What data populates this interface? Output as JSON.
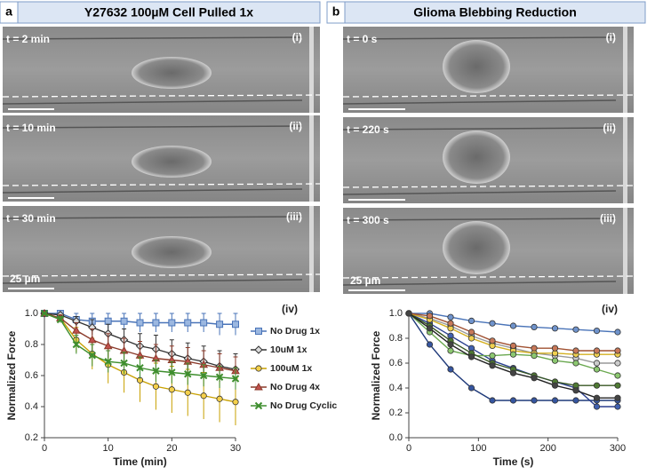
{
  "panels": [
    {
      "letter": "a",
      "title": "Y27632 100µM Cell Pulled 1x",
      "images": [
        {
          "time": "t = 2 min",
          "label": "(i)"
        },
        {
          "time": "t = 10 min",
          "label": "(ii)"
        },
        {
          "time": "t = 30 min",
          "label": "(iii)"
        }
      ],
      "scale_bar": "25 µm"
    },
    {
      "letter": "b",
      "title": "Glioma Blebbing Reduction",
      "images": [
        {
          "time": "t = 0 s",
          "label": "(i)"
        },
        {
          "time": "t = 220 s",
          "label": "(ii)"
        },
        {
          "time": "t = 300 s",
          "label": "(iii)"
        }
      ],
      "scale_bar": "25 µm"
    }
  ],
  "chart_data": [
    {
      "type": "line",
      "panel_label": "(iv)",
      "xlabel": "Time (min)",
      "ylabel": "Normalized Force",
      "x": [
        0,
        2.5,
        5,
        7.5,
        10,
        12.5,
        15,
        17.5,
        20,
        22.5,
        25,
        27.5,
        30
      ],
      "xlim": [
        0,
        30
      ],
      "xticks": [
        0,
        10,
        20,
        30
      ],
      "ylim": [
        0.2,
        1.0
      ],
      "yticks": [
        0.2,
        0.4,
        0.6,
        0.8,
        {
          "value": 1.0,
          "label": "1.0"
        }
      ],
      "legend": "right",
      "series": [
        {
          "name": "No Drug 1x",
          "color": "#4a74b8",
          "fill": "#9bb7e0",
          "marker": "square",
          "values": [
            1,
            1,
            0.96,
            0.95,
            0.95,
            0.95,
            0.94,
            0.94,
            0.94,
            0.94,
            0.94,
            0.93,
            0.93
          ],
          "errors": [
            0,
            0.01,
            0.04,
            0.05,
            0.05,
            0.05,
            0.06,
            0.06,
            0.06,
            0.06,
            0.06,
            0.07,
            0.07
          ]
        },
        {
          "name": "10uM 1x",
          "color": "#333333",
          "fill": "#dddddd",
          "marker": "diamond",
          "values": [
            1,
            0.99,
            0.95,
            0.91,
            0.87,
            0.83,
            0.79,
            0.77,
            0.74,
            0.71,
            0.69,
            0.66,
            0.64
          ],
          "errors": [
            0,
            0.01,
            0.03,
            0.05,
            0.06,
            0.07,
            0.08,
            0.09,
            0.09,
            0.1,
            0.1,
            0.1,
            0.1
          ]
        },
        {
          "name": "100uM 1x",
          "color": "#c8a000",
          "fill": "#f5d04a",
          "marker": "circle",
          "values": [
            1,
            0.97,
            0.83,
            0.74,
            0.67,
            0.62,
            0.57,
            0.53,
            0.51,
            0.49,
            0.47,
            0.45,
            0.43
          ],
          "errors": [
            0,
            0.02,
            0.08,
            0.1,
            0.12,
            0.13,
            0.14,
            0.15,
            0.15,
            0.15,
            0.15,
            0.15,
            0.15
          ]
        },
        {
          "name": "No Drug 4x",
          "color": "#8b3a2a",
          "fill": "#c0504d",
          "marker": "triangle",
          "values": [
            1,
            0.97,
            0.89,
            0.83,
            0.79,
            0.76,
            0.73,
            0.71,
            0.7,
            0.69,
            0.67,
            0.65,
            0.63
          ],
          "errors": [
            0,
            0.02,
            0.05,
            0.07,
            0.08,
            0.08,
            0.09,
            0.09,
            0.09,
            0.09,
            0.09,
            0.09,
            0.09
          ]
        },
        {
          "name": "No Drug Cyclic",
          "color": "#3e8e2e",
          "fill": "#3e8e2e",
          "marker": "x",
          "values": [
            1,
            0.96,
            0.8,
            0.73,
            0.69,
            0.68,
            0.65,
            0.63,
            0.62,
            0.61,
            0.6,
            0.59,
            0.58
          ],
          "errors": [
            0,
            0.02,
            0.06,
            0.07,
            0.07,
            0.07,
            0.07,
            0.07,
            0.07,
            0.07,
            0.07,
            0.07,
            0.07
          ]
        }
      ]
    },
    {
      "type": "line",
      "panel_label": "(iv)",
      "xlabel": "Time (s)",
      "ylabel": "Normalized Force",
      "x": [
        0,
        30,
        60,
        90,
        120,
        150,
        180,
        210,
        240,
        270,
        300
      ],
      "xlim": [
        0,
        300
      ],
      "xticks": [
        0,
        100,
        200,
        300
      ],
      "ylim": [
        0,
        1.0
      ],
      "yticks": [
        {
          "value": 0,
          "label": "0.0"
        },
        0.2,
        0.4,
        0.6,
        0.8,
        {
          "value": 1.0,
          "label": "1.0"
        }
      ],
      "series": [
        {
          "color": "#4a74b8",
          "fill": "#6f93cc",
          "marker": "circle",
          "values": [
            1,
            1,
            0.97,
            0.94,
            0.92,
            0.9,
            0.89,
            0.88,
            0.87,
            0.86,
            0.85
          ]
        },
        {
          "color": "#1f3a7a",
          "fill": "#3555a0",
          "marker": "circle",
          "values": [
            1,
            0.75,
            0.55,
            0.4,
            0.3,
            0.3,
            0.3,
            0.3,
            0.3,
            0.3,
            0.3
          ]
        },
        {
          "color": "#2a3f8f",
          "fill": "#4060b0",
          "marker": "circle",
          "values": [
            1,
            0.92,
            0.82,
            0.72,
            0.62,
            0.56,
            0.5,
            0.45,
            0.4,
            0.25,
            0.25
          ]
        },
        {
          "color": "#999999",
          "fill": "#cccccc",
          "marker": "circle",
          "values": [
            1,
            0.96,
            0.9,
            0.82,
            0.76,
            0.72,
            0.68,
            0.66,
            0.64,
            0.6,
            0.6
          ]
        },
        {
          "color": "#d4b020",
          "fill": "#f0d050",
          "marker": "circle",
          "values": [
            1,
            0.95,
            0.88,
            0.8,
            0.74,
            0.7,
            0.68,
            0.68,
            0.67,
            0.67,
            0.67
          ]
        },
        {
          "color": "#a05030",
          "fill": "#c87858",
          "marker": "circle",
          "values": [
            1,
            0.98,
            0.92,
            0.85,
            0.78,
            0.74,
            0.72,
            0.72,
            0.7,
            0.7,
            0.7
          ]
        },
        {
          "color": "#6aa84f",
          "fill": "#8cc870",
          "marker": "circle",
          "values": [
            1,
            0.85,
            0.7,
            0.66,
            0.66,
            0.67,
            0.66,
            0.62,
            0.6,
            0.55,
            0.5
          ]
        },
        {
          "color": "#385723",
          "fill": "#4f7a33",
          "marker": "circle",
          "values": [
            1,
            0.9,
            0.78,
            0.68,
            0.6,
            0.55,
            0.5,
            0.45,
            0.42,
            0.42,
            0.42
          ]
        },
        {
          "color": "#222222",
          "fill": "#444444",
          "marker": "circle",
          "values": [
            1,
            0.88,
            0.75,
            0.65,
            0.58,
            0.52,
            0.48,
            0.42,
            0.38,
            0.32,
            0.32
          ]
        }
      ]
    }
  ]
}
